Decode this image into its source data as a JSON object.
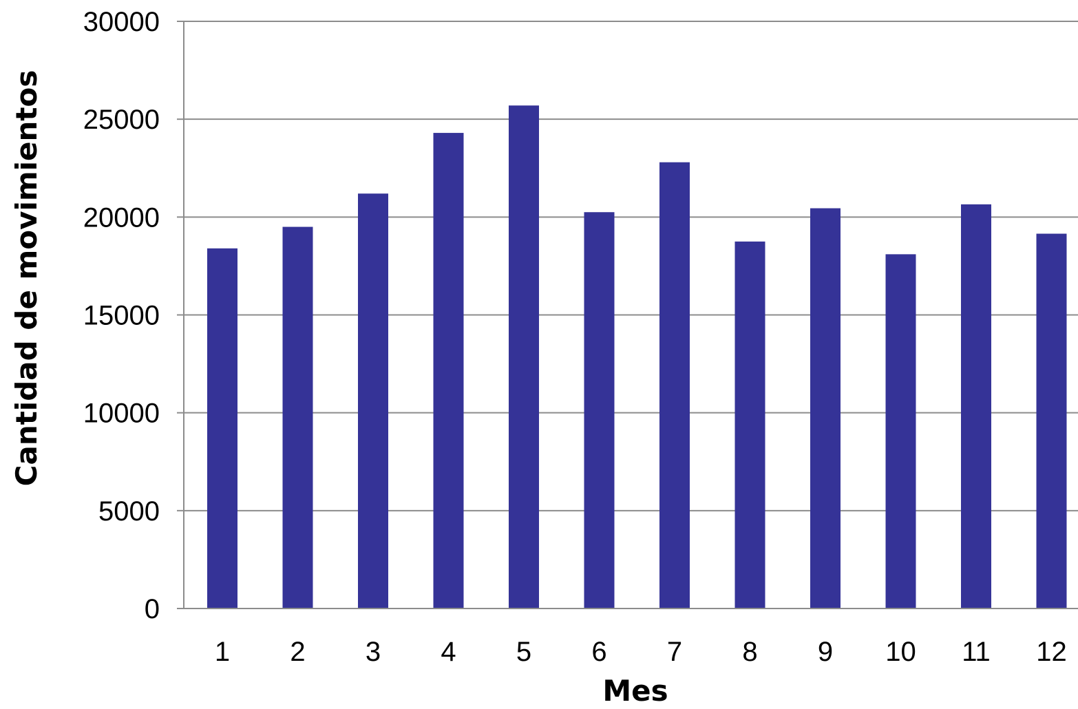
{
  "chart_data": {
    "type": "bar",
    "title": "",
    "xlabel": "Mes",
    "ylabel": "Cantidad de movimientos",
    "categories": [
      "1",
      "2",
      "3",
      "4",
      "5",
      "6",
      "7",
      "8",
      "9",
      "10",
      "11",
      "12"
    ],
    "values": [
      18400,
      19500,
      21200,
      24300,
      25700,
      20250,
      22800,
      18750,
      20450,
      18100,
      20650,
      19150
    ],
    "ylim": [
      0,
      30000
    ],
    "yticks": [
      "0",
      "5000",
      "10000",
      "15000",
      "20000",
      "25000",
      "30000"
    ],
    "grid": true,
    "legend": "none",
    "colors": {
      "bar": "#353397",
      "grid": "#8c8c8c",
      "axis": "#8c8c8c"
    }
  }
}
